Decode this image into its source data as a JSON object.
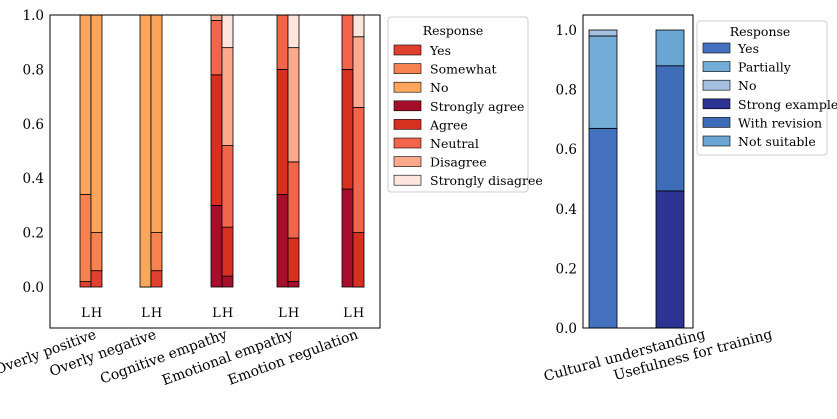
{
  "chart_data": [
    {
      "type": "bar",
      "stacked": true,
      "categories": [
        "Overly positive",
        "Overly negative",
        "Cognitive empathy",
        "Emotional empathy",
        "Emotion regulation"
      ],
      "sub_bar_labels": [
        "L",
        "H"
      ],
      "ylim": [
        0,
        1
      ],
      "yticks": [
        "0.0",
        "0.2",
        "0.4",
        "0.6",
        "0.8",
        "1.0"
      ],
      "legend": {
        "title": "Response",
        "position": "right",
        "items": [
          {
            "label": "Yes",
            "color": "#e0402e"
          },
          {
            "label": "Somewhat",
            "color": "#f6834f"
          },
          {
            "label": "No",
            "color": "#fca65d"
          },
          {
            "label": "Strongly agree",
            "color": "#a50f2c"
          },
          {
            "label": "Agree",
            "color": "#d7301f"
          },
          {
            "label": "Neutral",
            "color": "#f3654a"
          },
          {
            "label": "Disagree",
            "color": "#fca98d"
          },
          {
            "label": "Strongly disagree",
            "color": "#fde4dc"
          }
        ]
      },
      "bars": [
        {
          "category": "Overly positive",
          "sub": "L",
          "segments": [
            {
              "label": "Yes",
              "value": 0.02
            },
            {
              "label": "Somewhat",
              "value": 0.32
            },
            {
              "label": "No",
              "value": 0.66
            }
          ]
        },
        {
          "category": "Overly positive",
          "sub": "H",
          "segments": [
            {
              "label": "Yes",
              "value": 0.06
            },
            {
              "label": "Somewhat",
              "value": 0.14
            },
            {
              "label": "No",
              "value": 0.8
            }
          ]
        },
        {
          "category": "Overly negative",
          "sub": "L",
          "segments": [
            {
              "label": "Yes",
              "value": 0.0
            },
            {
              "label": "Somewhat",
              "value": 0.0
            },
            {
              "label": "No",
              "value": 1.0
            }
          ]
        },
        {
          "category": "Overly negative",
          "sub": "H",
          "segments": [
            {
              "label": "Yes",
              "value": 0.06
            },
            {
              "label": "Somewhat",
              "value": 0.14
            },
            {
              "label": "No",
              "value": 0.8
            }
          ]
        },
        {
          "category": "Cognitive empathy",
          "sub": "L",
          "segments": [
            {
              "label": "Strongly agree",
              "value": 0.3
            },
            {
              "label": "Agree",
              "value": 0.48
            },
            {
              "label": "Neutral",
              "value": 0.2
            },
            {
              "label": "Disagree",
              "value": 0.02
            },
            {
              "label": "Strongly disagree",
              "value": 0.0
            }
          ]
        },
        {
          "category": "Cognitive empathy",
          "sub": "H",
          "segments": [
            {
              "label": "Strongly agree",
              "value": 0.04
            },
            {
              "label": "Agree",
              "value": 0.18
            },
            {
              "label": "Neutral",
              "value": 0.3
            },
            {
              "label": "Disagree",
              "value": 0.36
            },
            {
              "label": "Strongly disagree",
              "value": 0.12
            }
          ]
        },
        {
          "category": "Emotional empathy",
          "sub": "L",
          "segments": [
            {
              "label": "Strongly agree",
              "value": 0.34
            },
            {
              "label": "Agree",
              "value": 0.46
            },
            {
              "label": "Neutral",
              "value": 0.2
            },
            {
              "label": "Disagree",
              "value": 0.0
            },
            {
              "label": "Strongly disagree",
              "value": 0.0
            }
          ]
        },
        {
          "category": "Emotional empathy",
          "sub": "H",
          "segments": [
            {
              "label": "Strongly agree",
              "value": 0.02
            },
            {
              "label": "Agree",
              "value": 0.16
            },
            {
              "label": "Neutral",
              "value": 0.28
            },
            {
              "label": "Disagree",
              "value": 0.42
            },
            {
              "label": "Strongly disagree",
              "value": 0.12
            }
          ]
        },
        {
          "category": "Emotion regulation",
          "sub": "L",
          "segments": [
            {
              "label": "Strongly agree",
              "value": 0.36
            },
            {
              "label": "Agree",
              "value": 0.44
            },
            {
              "label": "Neutral",
              "value": 0.2
            },
            {
              "label": "Disagree",
              "value": 0.0
            },
            {
              "label": "Strongly disagree",
              "value": 0.0
            }
          ]
        },
        {
          "category": "Emotion regulation",
          "sub": "H",
          "segments": [
            {
              "label": "Strongly agree",
              "value": 0.0
            },
            {
              "label": "Agree",
              "value": 0.2
            },
            {
              "label": "Neutral",
              "value": 0.46
            },
            {
              "label": "Disagree",
              "value": 0.26
            },
            {
              "label": "Strongly disagree",
              "value": 0.08
            }
          ]
        }
      ]
    },
    {
      "type": "bar",
      "stacked": true,
      "categories": [
        "Cultural understanding",
        "Usefulness for training"
      ],
      "ylim": [
        0,
        1.05
      ],
      "yticks": [
        "0.0",
        "0.2",
        "0.4",
        "0.6",
        "0.8",
        "1.0"
      ],
      "legend": {
        "title": "Response",
        "position": "right",
        "items": [
          {
            "label": "Yes",
            "color": "#4472c0"
          },
          {
            "label": "Partially",
            "color": "#73acd6"
          },
          {
            "label": "No",
            "color": "#a5bfe0"
          },
          {
            "label": "Strong example",
            "color": "#2c3393"
          },
          {
            "label": "With revision",
            "color": "#3f6cb8"
          },
          {
            "label": "Not suitable",
            "color": "#6aa6d4"
          }
        ]
      },
      "bars": [
        {
          "category": "Cultural understanding",
          "segments": [
            {
              "label": "Yes",
              "value": 0.67
            },
            {
              "label": "Partially",
              "value": 0.31
            },
            {
              "label": "No",
              "value": 0.02
            }
          ]
        },
        {
          "category": "Usefulness for training",
          "segments": [
            {
              "label": "Strong example",
              "value": 0.46
            },
            {
              "label": "With revision",
              "value": 0.42
            },
            {
              "label": "Not suitable",
              "value": 0.12
            }
          ]
        }
      ]
    }
  ]
}
